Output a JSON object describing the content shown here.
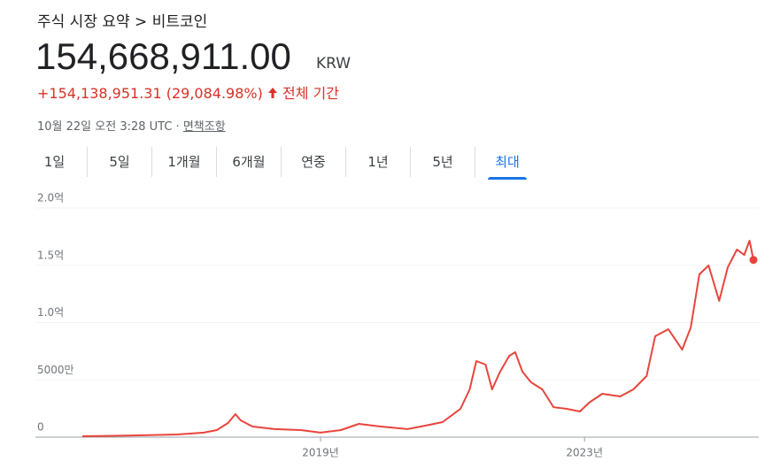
{
  "header": {
    "breadcrumb": "주식 시장 요약 > 비트코인",
    "price": "154,668,911.00",
    "currency": "KRW",
    "change": "+154,138,951.31 (29,084.98%)",
    "period": "전체 기간",
    "timestamp": "10월 22일 오전 3:28 UTC ·",
    "disclaimer": "면책조항"
  },
  "tabs": {
    "items": [
      "1일",
      "5일",
      "1개월",
      "6개월",
      "연중",
      "1년",
      "5년",
      "최대"
    ],
    "selected": 7
  },
  "chart_data": {
    "type": "line",
    "color": "#e8453c",
    "x": [
      2015.39,
      2016.15,
      2016.83,
      2017.23,
      2017.43,
      2017.6,
      2017.71,
      2017.79,
      2017.97,
      2018.3,
      2018.7,
      2019.0,
      2019.31,
      2019.58,
      2019.91,
      2020.32,
      2020.58,
      2020.85,
      2021.12,
      2021.26,
      2021.36,
      2021.5,
      2021.6,
      2021.72,
      2021.86,
      2021.95,
      2022.06,
      2022.19,
      2022.36,
      2022.53,
      2022.73,
      2022.93,
      2023.07,
      2023.27,
      2023.54,
      2023.74,
      2023.94,
      2024.07,
      2024.27,
      2024.48,
      2024.61,
      2024.74,
      2024.88,
      2025.04,
      2025.17,
      2025.31,
      2025.42,
      2025.5,
      2025.56
    ],
    "values": [
      800000,
      1500000,
      2300000,
      3900000,
      6200000,
      12400000,
      20100000,
      14700000,
      9300000,
      7000000,
      6200000,
      3900000,
      6200000,
      11600000,
      9300000,
      7000000,
      10000000,
      13100000,
      24700000,
      41700000,
      66400000,
      63300000,
      41700000,
      57100000,
      71000000,
      74100000,
      57100000,
      47900000,
      41700000,
      26200000,
      24700000,
      22400000,
      30100000,
      37800000,
      35500000,
      41700000,
      53300000,
      88000000,
      94200000,
      76400000,
      95700000,
      142000000,
      149800000,
      118900000,
      148200000,
      163700000,
      159000000,
      171400000,
      154668911
    ],
    "xlim": [
      2014.68,
      2025.64
    ],
    "xticks": [
      {
        "value": 2019,
        "label": "2019년"
      },
      {
        "value": 2023,
        "label": "2023년"
      }
    ],
    "ylim": [
      0,
      200000000
    ],
    "yticks": [
      0,
      {
        "value": 50000000,
        "label": "5000만"
      },
      {
        "value": 100000000,
        "label": "1.0억"
      },
      {
        "value": 150000000,
        "label": "1.5억"
      },
      {
        "value": 200000000,
        "label": "2.0억"
      }
    ],
    "grid": true
  }
}
